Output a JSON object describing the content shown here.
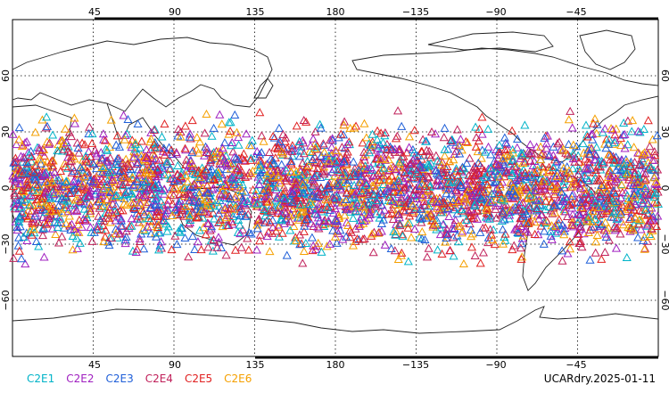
{
  "map": {
    "top_lon_labels": [
      "45",
      "90",
      "135",
      "180",
      "−135",
      "−90",
      "−45"
    ],
    "bottom_lon_labels": [
      "45",
      "90",
      "135",
      "180",
      "−135",
      "−90",
      "−45"
    ],
    "left_lat_labels": [
      "60",
      "30",
      "0",
      "−30",
      "−60"
    ],
    "right_lat_labels": [
      "60",
      "30",
      "0",
      "−30",
      "−60"
    ],
    "grid": "dotted",
    "lon_range": [
      0,
      360
    ],
    "lat_range": [
      -90,
      90
    ],
    "observation_band_lat": [
      -45,
      45
    ],
    "marker_shape": "open-triangle"
  },
  "legend": {
    "items": [
      {
        "label": "C2E1",
        "color": "#00b3c8"
      },
      {
        "label": "C2E2",
        "color": "#a020c0"
      },
      {
        "label": "C2E3",
        "color": "#1f5fd8"
      },
      {
        "label": "C2E4",
        "color": "#c0205a"
      },
      {
        "label": "C2E5",
        "color": "#e02020"
      },
      {
        "label": "C2E6",
        "color": "#f5a000"
      }
    ]
  },
  "footer": {
    "product_date": "UCARdry.2025-01-11"
  }
}
